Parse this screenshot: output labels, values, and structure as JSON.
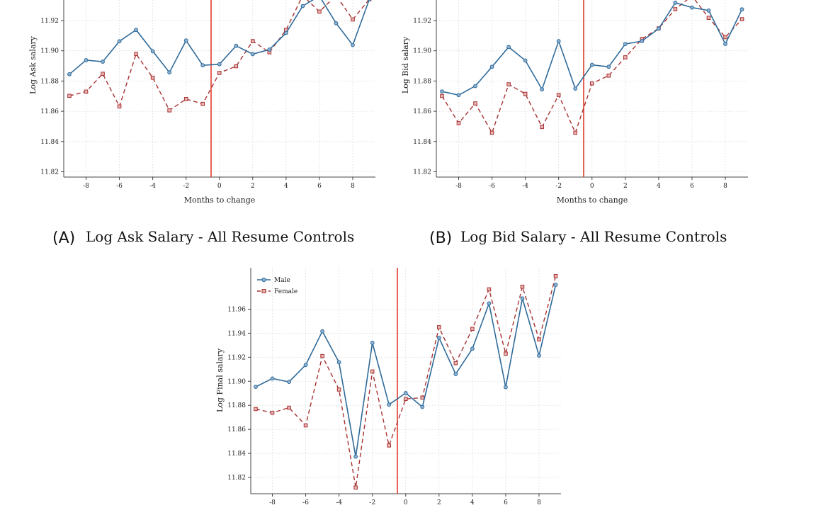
{
  "colors": {
    "male": "#2f6a99",
    "female": "#a83232",
    "event": "#e23c2c"
  },
  "captions": [
    {
      "letter": "(A)",
      "text": "Log Ask Salary - All Resume Controls"
    },
    {
      "letter": "(B)",
      "text": "Log Bid Salary - All Resume Controls"
    }
  ],
  "chart_data": [
    {
      "type": "line",
      "id": "A",
      "title": "Log Ask Salary - All Resume Controls",
      "xlabel": "Months to change",
      "ylabel": "Log Ask salary",
      "x_ticks": [
        -8,
        -6,
        -4,
        -2,
        0,
        2,
        4,
        6,
        8
      ],
      "y_ticks": [
        11.82,
        11.84,
        11.86,
        11.88,
        11.9,
        11.92
      ],
      "x": [
        -9,
        -8,
        -7,
        -6,
        -5,
        -4,
        -3,
        -2,
        -1,
        0,
        1,
        2,
        3,
        4,
        5,
        6,
        7,
        8,
        9
      ],
      "event_x": -0.5,
      "series": [
        {
          "name": "Male",
          "values": [
            11.8845,
            11.8938,
            11.8928,
            11.9063,
            11.9138,
            11.8997,
            11.8857,
            11.9068,
            11.8904,
            11.8911,
            11.9033,
            11.8978,
            11.9008,
            11.9118,
            11.9296,
            11.9362,
            11.9182,
            11.9038,
            11.9341
          ]
        },
        {
          "name": "Female",
          "values": [
            11.8702,
            11.873,
            11.8848,
            11.8632,
            11.8979,
            11.8822,
            11.8606,
            11.8681,
            11.8649,
            11.8854,
            11.8898,
            11.9064,
            11.899,
            11.9138,
            11.9366,
            11.9259,
            11.9366,
            11.9207,
            11.9341
          ]
        }
      ]
    },
    {
      "type": "line",
      "id": "B",
      "title": "Log Bid Salary - All Resume Controls",
      "xlabel": "Months to change",
      "ylabel": "Log Bid salary",
      "x_ticks": [
        -8,
        -6,
        -4,
        -2,
        0,
        2,
        4,
        6,
        8
      ],
      "y_ticks": [
        11.82,
        11.84,
        11.86,
        11.88,
        11.9,
        11.92
      ],
      "x": [
        -9,
        -8,
        -7,
        -6,
        -5,
        -4,
        -3,
        -2,
        -1,
        0,
        1,
        2,
        3,
        4,
        5,
        6,
        7,
        8,
        9
      ],
      "event_x": -0.5,
      "series": [
        {
          "name": "Male",
          "values": [
            11.8731,
            11.8707,
            11.8767,
            11.8894,
            11.9025,
            11.8936,
            11.8745,
            11.9064,
            11.875,
            11.8907,
            11.8894,
            11.9045,
            11.9064,
            11.9146,
            11.9318,
            11.9286,
            11.9266,
            11.9045,
            11.9274
          ]
        },
        {
          "name": "Female",
          "values": [
            11.8701,
            11.8522,
            11.8652,
            11.8458,
            11.8778,
            11.8715,
            11.8496,
            11.8708,
            11.8458,
            11.8784,
            11.8836,
            11.8957,
            11.9078,
            11.9148,
            11.9275,
            11.9363,
            11.9218,
            11.909,
            11.9209
          ]
        }
      ]
    },
    {
      "type": "line",
      "id": "C",
      "xlabel": "",
      "ylabel": "Log Final salary",
      "legend": [
        "Male",
        "Female"
      ],
      "x_ticks": [
        -8,
        -6,
        -4,
        -2,
        0,
        2,
        4,
        6,
        8
      ],
      "y_ticks": [
        11.82,
        11.84,
        11.86,
        11.88,
        11.9,
        11.92,
        11.94,
        11.96
      ],
      "x": [
        -9,
        -8,
        -7,
        -6,
        -5,
        -4,
        -3,
        -2,
        -1,
        0,
        1,
        2,
        3,
        4,
        5,
        6,
        7,
        8,
        9
      ],
      "event_x": -0.5,
      "series": [
        {
          "name": "Male",
          "values": [
            11.8954,
            11.9023,
            11.8995,
            11.9136,
            11.9416,
            11.9158,
            11.8373,
            11.932,
            11.8806,
            11.8902,
            11.8786,
            11.9362,
            11.906,
            11.9271,
            11.9648,
            11.8951,
            11.969,
            11.9214,
            11.9803
          ]
        },
        {
          "name": "Female",
          "values": [
            11.8769,
            11.8738,
            11.878,
            11.8633,
            11.921,
            11.8931,
            11.8116,
            11.9082,
            11.8466,
            11.8853,
            11.8864,
            11.945,
            11.9151,
            11.9436,
            11.9765,
            11.923,
            11.9787,
            11.9349,
            11.9875
          ]
        }
      ]
    }
  ]
}
